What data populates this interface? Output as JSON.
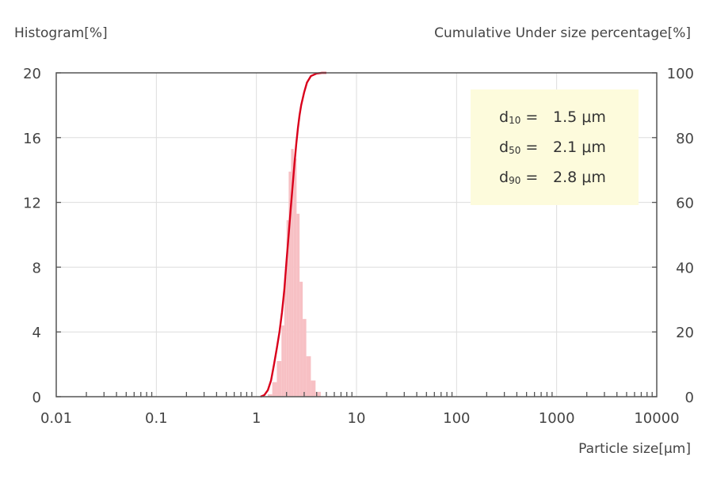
{
  "chart_data": {
    "type": "bar",
    "left_axis_label": "Histogram[%]",
    "right_axis_label": "Cumulative Under size percentage[%]",
    "xlabel": "Particle size[μm]",
    "x_scale": "log",
    "xlim": [
      0.01,
      10000
    ],
    "ylim_left": [
      0,
      20
    ],
    "ylim_right": [
      0,
      100
    ],
    "x_tick_labels": [
      "0.01",
      "0.1",
      "1",
      "10",
      "100",
      "1000",
      "10000"
    ],
    "y_left_tick_labels": [
      "0",
      "4",
      "8",
      "12",
      "16",
      "20"
    ],
    "y_right_tick_labels": [
      "0",
      "20",
      "40",
      "60",
      "80",
      "100"
    ],
    "grid": true,
    "colors": {
      "histogram": "#f7c0c4",
      "cumulative": "#d9001b",
      "stats_box": "#fdfbdc",
      "axis": "#555555",
      "grid": "#dddddd"
    },
    "series": [
      {
        "kind": "histogram",
        "axis": "left",
        "bins": [
          {
            "x0": 1.3,
            "x1": 1.44,
            "y": 0.15
          },
          {
            "x0": 1.44,
            "x1": 1.6,
            "y": 0.9
          },
          {
            "x0": 1.6,
            "x1": 1.78,
            "y": 2.2
          },
          {
            "x0": 1.78,
            "x1": 1.9,
            "y": 4.4
          },
          {
            "x0": 1.9,
            "x1": 2.0,
            "y": 7.4
          },
          {
            "x0": 2.0,
            "x1": 2.1,
            "y": 10.9
          },
          {
            "x0": 2.1,
            "x1": 2.22,
            "y": 13.9
          },
          {
            "x0": 2.22,
            "x1": 2.36,
            "y": 15.3
          },
          {
            "x0": 2.36,
            "x1": 2.52,
            "y": 14.7
          },
          {
            "x0": 2.52,
            "x1": 2.7,
            "y": 11.3
          },
          {
            "x0": 2.7,
            "x1": 2.9,
            "y": 7.1
          },
          {
            "x0": 2.9,
            "x1": 3.15,
            "y": 4.8
          },
          {
            "x0": 3.15,
            "x1": 3.5,
            "y": 2.5
          },
          {
            "x0": 3.5,
            "x1": 3.9,
            "y": 1.0
          },
          {
            "x0": 3.9,
            "x1": 4.4,
            "y": 0.3
          }
        ]
      },
      {
        "kind": "cumulative",
        "axis": "right",
        "x": [
          1.1,
          1.2,
          1.3,
          1.4,
          1.5,
          1.6,
          1.7,
          1.8,
          1.9,
          2.0,
          2.1,
          2.2,
          2.3,
          2.4,
          2.5,
          2.6,
          2.7,
          2.8,
          3.0,
          3.2,
          3.5,
          4.0,
          4.5,
          5.0
        ],
        "y": [
          0,
          0.5,
          2,
          5,
          10,
          15,
          20,
          26,
          33,
          42,
          50,
          58,
          65,
          72,
          78,
          83,
          87,
          90,
          94,
          97,
          99,
          99.8,
          100,
          100
        ]
      }
    ],
    "annotations": [
      {
        "symbol": "d",
        "sub": "10",
        "text": "1.5 μm"
      },
      {
        "symbol": "d",
        "sub": "50",
        "text": "2.1 μm"
      },
      {
        "symbol": "d",
        "sub": "90",
        "text": "2.8 μm"
      }
    ]
  }
}
